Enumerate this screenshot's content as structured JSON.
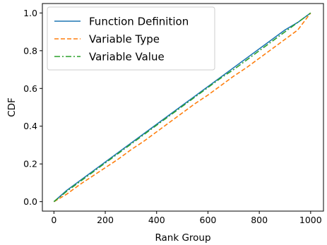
{
  "chart_data": {
    "type": "line",
    "xlabel": "Rank Group",
    "ylabel": "CDF",
    "xlim": [
      -45,
      1050
    ],
    "ylim": [
      -0.05,
      1.05
    ],
    "xticks": [
      0,
      200,
      400,
      600,
      800,
      1000
    ],
    "yticks": [
      0.0,
      0.2,
      0.4,
      0.6,
      0.8,
      1.0
    ],
    "xtick_labels": [
      "0",
      "200",
      "400",
      "600",
      "800",
      "1000"
    ],
    "ytick_labels": [
      "0.0",
      "0.2",
      "0.4",
      "0.6",
      "0.8",
      "1.0"
    ],
    "grid": false,
    "legend_position": "top-left",
    "series": [
      {
        "name": "Function Definition",
        "color": "#1f77b4",
        "style": "solid",
        "x": [
          0,
          50,
          100,
          150,
          200,
          250,
          300,
          350,
          400,
          450,
          500,
          550,
          600,
          650,
          700,
          750,
          800,
          850,
          900,
          950,
          1000
        ],
        "y": [
          0.0,
          0.06,
          0.11,
          0.16,
          0.21,
          0.26,
          0.31,
          0.36,
          0.41,
          0.46,
          0.51,
          0.56,
          0.61,
          0.66,
          0.71,
          0.76,
          0.81,
          0.86,
          0.91,
          0.95,
          1.0
        ]
      },
      {
        "name": "Variable Type",
        "color": "#ff7f0e",
        "style": "dashed",
        "x": [
          0,
          50,
          100,
          150,
          200,
          250,
          300,
          350,
          400,
          450,
          500,
          550,
          600,
          650,
          700,
          750,
          800,
          850,
          900,
          950,
          1000
        ],
        "y": [
          0.0,
          0.04,
          0.09,
          0.135,
          0.18,
          0.225,
          0.275,
          0.32,
          0.37,
          0.42,
          0.47,
          0.52,
          0.565,
          0.615,
          0.665,
          0.71,
          0.76,
          0.81,
          0.86,
          0.91,
          1.0
        ]
      },
      {
        "name": "Variable Value",
        "color": "#2ca02c",
        "style": "dashdot",
        "x": [
          0,
          50,
          100,
          150,
          200,
          250,
          300,
          350,
          400,
          450,
          500,
          550,
          600,
          650,
          700,
          750,
          800,
          850,
          900,
          950,
          1000
        ],
        "y": [
          0.0,
          0.055,
          0.105,
          0.155,
          0.205,
          0.255,
          0.305,
          0.355,
          0.405,
          0.455,
          0.505,
          0.555,
          0.605,
          0.655,
          0.7,
          0.75,
          0.8,
          0.85,
          0.9,
          0.95,
          1.0
        ]
      }
    ]
  }
}
